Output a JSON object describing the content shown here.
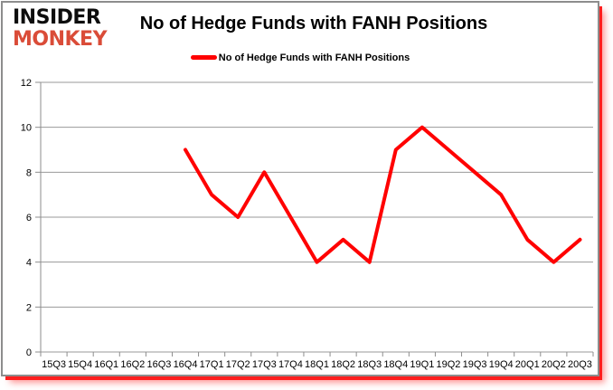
{
  "logo": {
    "line1": "INSIDER",
    "line2": "MONKEY"
  },
  "legend": {
    "label": "No of Hedge Funds with FANH Positions"
  },
  "colors": {
    "line": "#ff0000",
    "grid": "#9a9a9a",
    "axis": "#8d8d8d",
    "logo_red": "#da4c38",
    "shadow_red": "#ff1f1f"
  },
  "chart_data": {
    "type": "line",
    "title": "No of Hedge Funds with FANH Positions",
    "categories": [
      "15Q3",
      "15Q4",
      "16Q1",
      "16Q2",
      "16Q3",
      "16Q4",
      "17Q1",
      "17Q2",
      "17Q3",
      "17Q4",
      "18Q1",
      "18Q2",
      "18Q3",
      "18Q4",
      "19Q1",
      "19Q2",
      "19Q3",
      "19Q4",
      "20Q1",
      "20Q2",
      "20Q3"
    ],
    "series": [
      {
        "name": "No of Hedge Funds with FANH Positions",
        "values": [
          null,
          null,
          null,
          null,
          null,
          9,
          7,
          6,
          8,
          6,
          4,
          5,
          4,
          9,
          10,
          9,
          8,
          7,
          5,
          4,
          5
        ]
      }
    ],
    "xlabel": "",
    "ylabel": "",
    "ylim": [
      0,
      12
    ],
    "ytick": 2,
    "grid": true,
    "legend_position": "top",
    "line_color": "#ff0000",
    "grid_color": "#9a9a9a",
    "axis_color": "#8d8d8d"
  }
}
